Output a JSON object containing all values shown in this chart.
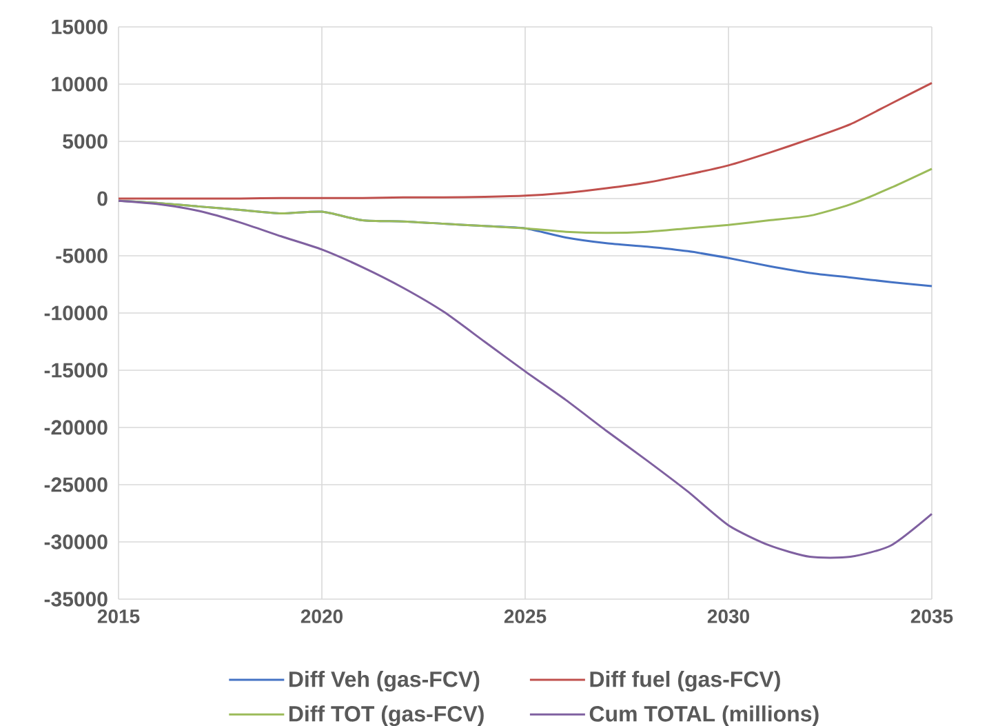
{
  "chart_data": {
    "type": "line",
    "x": [
      2015,
      2016,
      2017,
      2018,
      2019,
      2020,
      2021,
      2022,
      2023,
      2024,
      2025,
      2026,
      2027,
      2028,
      2029,
      2030,
      2031,
      2032,
      2033,
      2034,
      2035
    ],
    "xlim": [
      2015,
      2035
    ],
    "ylim": [
      -35000,
      15000
    ],
    "xticks": [
      2015,
      2020,
      2025,
      2030,
      2035
    ],
    "yticks": [
      -35000,
      -30000,
      -25000,
      -20000,
      -15000,
      -10000,
      -5000,
      0,
      5000,
      10000,
      15000
    ],
    "grid": true,
    "legend": "bottom",
    "series": [
      {
        "name": "Diff Veh (gas-FCV)",
        "color": "#4472c4",
        "values": [
          -200,
          -400,
          -700,
          -1000,
          -1300,
          -1150,
          -1900,
          -2000,
          -2200,
          -2400,
          -2600,
          -3400,
          -3900,
          -4200,
          -4600,
          -5200,
          -5900,
          -6500,
          -6900,
          -7300,
          -7650
        ]
      },
      {
        "name": "Diff fuel (gas-FCV)",
        "color": "#c0504d",
        "values": [
          0,
          0,
          0,
          0,
          50,
          50,
          50,
          100,
          100,
          150,
          250,
          500,
          900,
          1400,
          2100,
          2900,
          4000,
          5200,
          6500,
          8300,
          10100
        ]
      },
      {
        "name": "Diff TOT (gas-FCV)",
        "color": "#9bbb59",
        "values": [
          -200,
          -400,
          -700,
          -1000,
          -1300,
          -1150,
          -1900,
          -2000,
          -2200,
          -2400,
          -2600,
          -2900,
          -3000,
          -2900,
          -2600,
          -2300,
          -1900,
          -1500,
          -500,
          950,
          2600
        ]
      },
      {
        "name": "Cum TOTAL (millions)",
        "color": "#7f60a0",
        "values": [
          -200,
          -500,
          -1100,
          -2100,
          -3300,
          -4450,
          -6000,
          -7800,
          -9900,
          -12500,
          -15100,
          -17600,
          -20300,
          -22900,
          -25600,
          -28550,
          -30300,
          -31300,
          -31300,
          -30300,
          -27550
        ]
      }
    ]
  }
}
